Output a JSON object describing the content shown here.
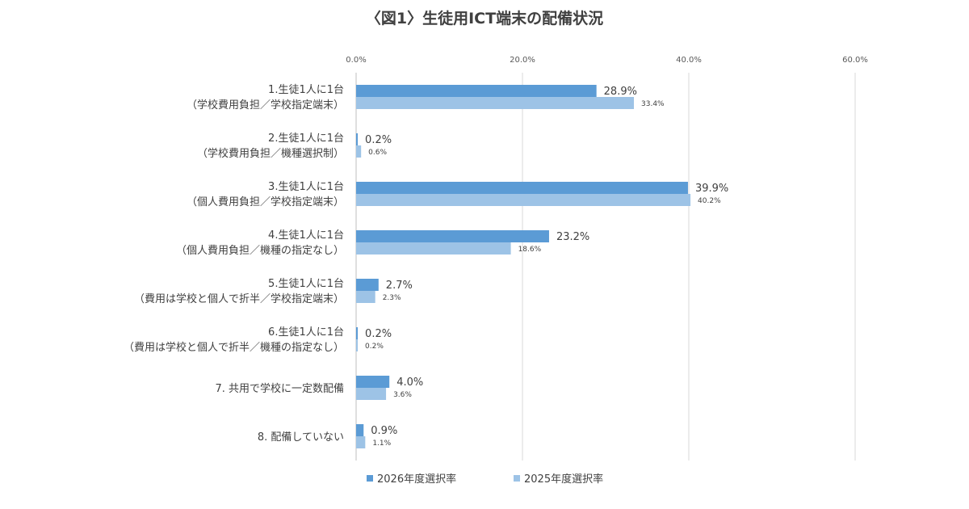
{
  "chart_data": {
    "type": "bar",
    "orientation": "horizontal",
    "title": "〈図1〉生徒用ICT端末の配備状況",
    "xlim": [
      0,
      60
    ],
    "x_ticks": [
      "0.0%",
      "20.0%",
      "40.0%",
      "60.0%"
    ],
    "x_tick_values": [
      0,
      20,
      40,
      60
    ],
    "grid": true,
    "legend_position": "bottom",
    "categories": [
      [
        "1.生徒1人に1台",
        "（学校費用負担／学校指定端末）"
      ],
      [
        "2.生徒1人に1台",
        "（学校費用負担／機種選択制）"
      ],
      [
        "3.生徒1人に1台",
        "（個人費用負担／学校指定端末）"
      ],
      [
        "4.生徒1人に1台",
        "（個人費用負担／機種の指定なし）"
      ],
      [
        "5.生徒1人に1台",
        "（費用は学校と個人で折半／学校指定端末）"
      ],
      [
        "6.生徒1人に1台",
        "（費用は学校と個人で折半／機種の指定なし）"
      ],
      [
        "7. 共用で学校に一定数配備"
      ],
      [
        "8. 配備していない"
      ]
    ],
    "series": [
      {
        "name": "2026年度選択率",
        "color": "#5b9bd5",
        "values": [
          28.9,
          0.2,
          39.9,
          23.2,
          2.7,
          0.2,
          4.0,
          0.9
        ],
        "labels": [
          "28.9%",
          "0.2%",
          "39.9%",
          "23.2%",
          "2.7%",
          "0.2%",
          "4.0%",
          "0.9%"
        ]
      },
      {
        "name": "2025年度選択率",
        "color": "#9dc3e6",
        "values": [
          33.4,
          0.6,
          40.2,
          18.6,
          2.3,
          0.2,
          3.6,
          1.1
        ],
        "labels": [
          "33.4%",
          "0.6%",
          "40.2%",
          "18.6%",
          "2.3%",
          "0.2%",
          "3.6%",
          "1.1%"
        ]
      }
    ]
  }
}
